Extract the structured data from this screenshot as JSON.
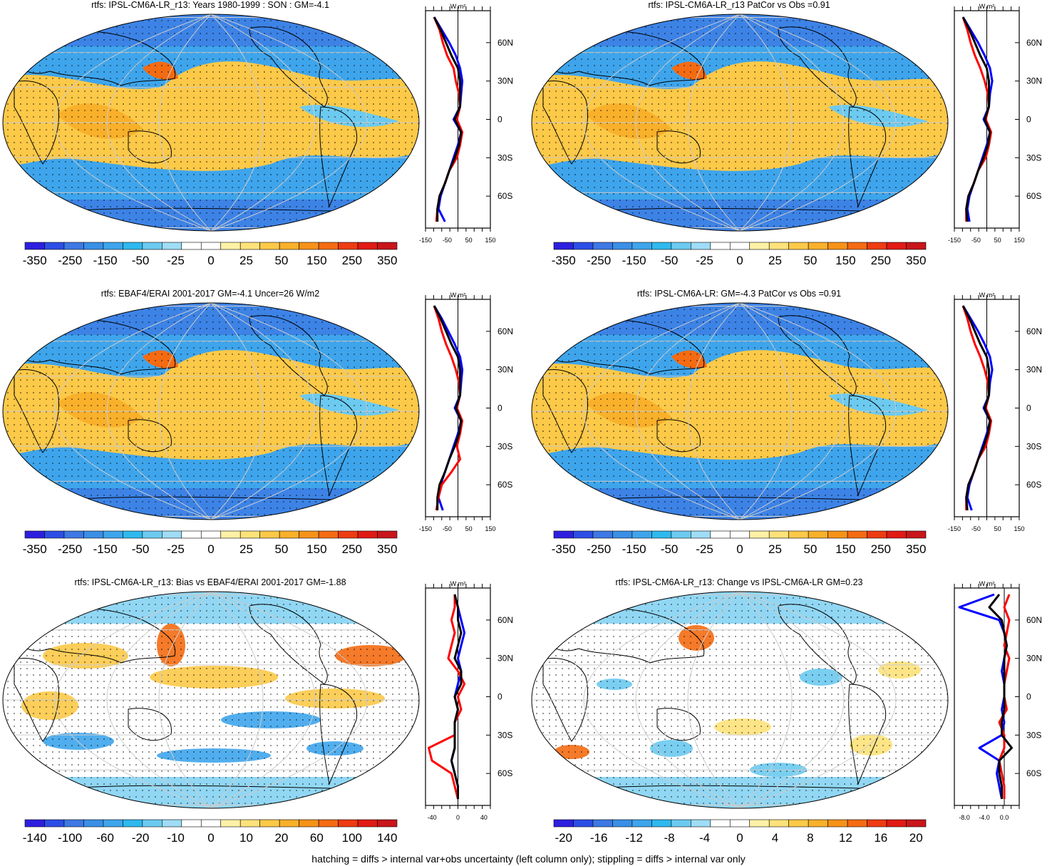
{
  "footer": "hatching = diffs > internal var+obs uncertainty (left column only); stippling = diffs > internal var only",
  "palette_full": [
    "#2e1fe0",
    "#2d4ee6",
    "#3d78e4",
    "#3a8fe6",
    "#3ea5ec",
    "#2eb9ee",
    "#6ccaf0",
    "#9fdcf5",
    "#ffffff",
    "#ffffff",
    "#fdf1a6",
    "#fde27a",
    "#fcc948",
    "#f9b02a",
    "#f79218",
    "#f46b12",
    "#ee3b12",
    "#e11a14",
    "#c8161a"
  ],
  "chart_data": [
    {
      "type": "heatmap",
      "title": "rtfs: IPSL-CM6A-LR_r13: Years 1980-1999 : SON : GM=-4.1",
      "colorbar_labels": [
        "-350",
        "-250",
        "-150",
        "-50",
        "-25",
        "0",
        "25",
        "50",
        "150",
        "250",
        "350"
      ],
      "profile": {
        "unit": "W m²",
        "xticks": [
          "-150",
          "-50",
          "50",
          "150"
        ],
        "xlim": [
          -150,
          150
        ],
        "yticks": [
          "60N",
          "30N",
          "0",
          "30S",
          "60S"
        ],
        "lat": [
          80,
          70,
          60,
          50,
          40,
          30,
          20,
          10,
          0,
          -10,
          -20,
          -30,
          -40,
          -50,
          -60,
          -70,
          -80
        ],
        "series": [
          {
            "color": "#0000ff",
            "values": [
              -110,
              -75,
              -40,
              -10,
              10,
              20,
              15,
              10,
              -20,
              15,
              0,
              -20,
              -40,
              -60,
              -80,
              -90,
              -60
            ]
          },
          {
            "color": "#ff0000",
            "values": [
              -110,
              -85,
              -70,
              -50,
              -20,
              -10,
              5,
              10,
              -5,
              20,
              10,
              -5,
              -40,
              -60,
              -85,
              -95,
              -100
            ]
          },
          {
            "color": "#000000",
            "values": [
              -110,
              -80,
              -55,
              -30,
              0,
              10,
              10,
              10,
              -15,
              15,
              5,
              -15,
              -40,
              -60,
              -85,
              -95,
              -95
            ]
          }
        ]
      }
    },
    {
      "type": "heatmap",
      "title": "rtfs: IPSL-CM6A-LR_r13 PatCor vs Obs =0.91",
      "colorbar_labels": [
        "-350",
        "-250",
        "-150",
        "-50",
        "-25",
        "0",
        "25",
        "50",
        "150",
        "250",
        "350"
      ],
      "profile": {
        "unit": "W m²",
        "xticks": [
          "-150",
          "-50",
          "50",
          "150"
        ],
        "xlim": [
          -150,
          150
        ],
        "yticks": [
          "60N",
          "30N",
          "0",
          "30S",
          "60S"
        ],
        "lat": [
          80,
          70,
          60,
          50,
          40,
          30,
          20,
          10,
          0,
          -10,
          -20,
          -30,
          -40,
          -50,
          -60,
          -70,
          -80
        ],
        "series": [
          {
            "color": "#0000ff",
            "values": [
              -110,
              -75,
              -40,
              -10,
              15,
              25,
              15,
              10,
              -15,
              15,
              0,
              -20,
              -40,
              -60,
              -80,
              -90,
              -80
            ]
          },
          {
            "color": "#ff0000",
            "values": [
              -110,
              -90,
              -75,
              -55,
              -30,
              -10,
              5,
              10,
              -5,
              20,
              10,
              -5,
              -40,
              -60,
              -85,
              -95,
              -95
            ]
          },
          {
            "color": "#000000",
            "values": [
              -110,
              -80,
              -55,
              -30,
              0,
              10,
              10,
              10,
              -10,
              15,
              5,
              -15,
              -40,
              -60,
              -85,
              -95,
              -90
            ]
          }
        ]
      }
    },
    {
      "type": "heatmap",
      "title": "rtfs: EBAF4/ERAI 2001-2017 GM=-4.1 Uncer=26 W/m2",
      "colorbar_labels": [
        "-350",
        "-250",
        "-150",
        "-50",
        "-25",
        "0",
        "25",
        "50",
        "150",
        "250",
        "350"
      ],
      "profile": {
        "unit": "W m²",
        "xticks": [
          "-150",
          "-50",
          "50",
          "150"
        ],
        "xlim": [
          -150,
          150
        ],
        "yticks": [
          "60N",
          "30N",
          "0",
          "30S",
          "60S"
        ],
        "lat": [
          80,
          70,
          60,
          50,
          40,
          30,
          20,
          10,
          0,
          -10,
          -20,
          -30,
          -40,
          -50,
          -60,
          -70,
          -80
        ],
        "series": [
          {
            "color": "#0000ff",
            "values": [
              -110,
              -75,
              -45,
              -15,
              10,
              20,
              15,
              10,
              -15,
              15,
              0,
              -20,
              -40,
              -60,
              -80,
              -90,
              -70
            ]
          },
          {
            "color": "#ff0000",
            "values": [
              -110,
              -90,
              -75,
              -55,
              -30,
              -10,
              5,
              10,
              -5,
              20,
              10,
              -5,
              10,
              -30,
              -75,
              -90,
              -100
            ]
          },
          {
            "color": "#000000",
            "values": [
              -110,
              -80,
              -55,
              -30,
              0,
              10,
              10,
              10,
              -10,
              15,
              5,
              -15,
              -40,
              -60,
              -85,
              -95,
              -95
            ]
          }
        ]
      }
    },
    {
      "type": "heatmap",
      "title": "rtfs: IPSL-CM6A-LR: GM=-4.3 PatCor vs Obs =0.91",
      "colorbar_labels": [
        "-350",
        "-250",
        "-150",
        "-50",
        "-25",
        "0",
        "25",
        "50",
        "150",
        "250",
        "350"
      ],
      "profile": {
        "unit": "W m²",
        "xticks": [
          "-150",
          "-50",
          "50",
          "150"
        ],
        "xlim": [
          -150,
          150
        ],
        "yticks": [
          "60N",
          "30N",
          "0",
          "30S",
          "60S"
        ],
        "lat": [
          80,
          70,
          60,
          50,
          40,
          30,
          20,
          10,
          0,
          -10,
          -20,
          -30,
          -40,
          -50,
          -60,
          -70,
          -80
        ],
        "series": [
          {
            "color": "#0000ff",
            "values": [
              -110,
              -75,
              -40,
              -10,
              15,
              25,
              15,
              10,
              -15,
              15,
              0,
              -20,
              -40,
              -60,
              -80,
              -90,
              -70
            ]
          },
          {
            "color": "#ff0000",
            "values": [
              -110,
              -90,
              -75,
              -55,
              -30,
              -10,
              5,
              10,
              -5,
              20,
              10,
              -5,
              -40,
              -60,
              -85,
              -95,
              -95
            ]
          },
          {
            "color": "#000000",
            "values": [
              -110,
              -80,
              -55,
              -30,
              0,
              10,
              10,
              10,
              -10,
              15,
              5,
              -15,
              -40,
              -60,
              -85,
              -95,
              -90
            ]
          }
        ]
      }
    },
    {
      "type": "heatmap",
      "title": "rtfs: IPSL-CM6A-LR_r13: Bias vs EBAF4/ERAI 2001-2017  GM=-1.88",
      "colorbar_labels": [
        "-140",
        "-100",
        "-60",
        "-20",
        "-10",
        "0",
        "10",
        "20",
        "60",
        "100",
        "140"
      ],
      "profile": {
        "unit": "W m²",
        "xticks": [
          "-40",
          "0",
          "40"
        ],
        "xlim": [
          -50,
          50
        ],
        "yticks": [
          "60N",
          "30N",
          "0",
          "30S",
          "60S"
        ],
        "lat": [
          80,
          70,
          60,
          50,
          40,
          30,
          20,
          10,
          0,
          -10,
          -20,
          -30,
          -40,
          -50,
          -60,
          -70,
          -80
        ],
        "series": [
          {
            "color": "#0000ff",
            "values": [
              -5,
              0,
              5,
              10,
              5,
              0,
              5,
              0,
              -5,
              0,
              -5,
              -5,
              -5,
              -10,
              -5,
              0,
              0
            ]
          },
          {
            "color": "#ff0000",
            "values": [
              -5,
              -5,
              -10,
              -5,
              -10,
              -15,
              0,
              10,
              0,
              5,
              -5,
              -5,
              -45,
              -40,
              -10,
              -5,
              0
            ]
          },
          {
            "color": "#000000",
            "values": [
              -5,
              0,
              0,
              5,
              0,
              -5,
              5,
              5,
              -5,
              0,
              -5,
              -5,
              -5,
              -10,
              -5,
              0,
              0
            ]
          }
        ]
      }
    },
    {
      "type": "heatmap",
      "title": "rtfs: IPSL-CM6A-LR_r13: Change vs IPSL-CM6A-LR GM=0.23",
      "colorbar_labels": [
        "-20",
        "-16",
        "-12",
        "-8",
        "-4",
        "0",
        "4",
        "8",
        "12",
        "16",
        "20"
      ],
      "profile": {
        "unit": "W m²",
        "xticks": [
          "-8.0",
          "-4.0",
          "0.0"
        ],
        "xlim": [
          -10,
          3
        ],
        "yticks": [
          "60N",
          "30N",
          "0",
          "30S",
          "60S"
        ],
        "lat": [
          80,
          70,
          60,
          50,
          40,
          30,
          20,
          10,
          0,
          -10,
          -20,
          -30,
          -40,
          -50,
          -60,
          -70,
          -80
        ],
        "series": [
          {
            "color": "#0000ff",
            "values": [
              -2,
              -9,
              -1,
              0,
              0.5,
              0,
              -0.5,
              0,
              0,
              -0.5,
              0,
              -0.5,
              -5,
              -1,
              -1.5,
              -1,
              -0.5
            ]
          },
          {
            "color": "#ff0000",
            "values": [
              1,
              0,
              1,
              0.5,
              0,
              1,
              0.5,
              0,
              0,
              0.5,
              -1,
              0,
              0,
              -1,
              -0.5,
              0,
              0
            ]
          },
          {
            "color": "#000000",
            "values": [
              -1,
              -3,
              -0.5,
              0,
              0.5,
              0,
              0,
              0,
              0,
              0,
              -0.5,
              -0.5,
              1.5,
              -1,
              -1,
              -0.5,
              -0.5
            ]
          }
        ]
      }
    }
  ]
}
